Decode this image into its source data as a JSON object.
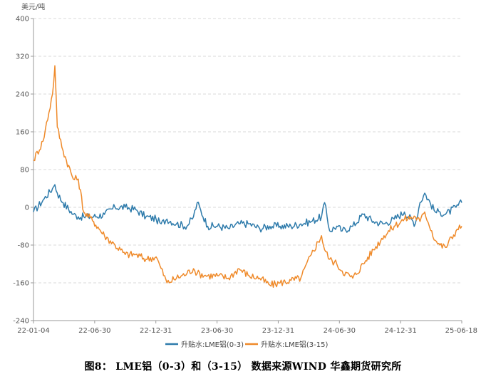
{
  "colors": {
    "series_0_3": "#2e7bab",
    "series_3_15": "#ef8a2a",
    "grid": "#d9d9d9",
    "axis": "#999999"
  },
  "caption": {
    "text": "图8： LME铝（0-3）和（3-15）   数据来源WIND  华鑫期货研究所"
  },
  "chart_data": {
    "type": "line",
    "ylabel": "美元/吨",
    "ylim": [
      -240,
      400
    ],
    "yticks": [
      -240,
      -160,
      -80,
      0,
      80,
      160,
      240,
      320,
      400
    ],
    "y_tick_labels": [
      "-240",
      "-160",
      "-80",
      "0",
      "80",
      "160",
      "240",
      "320",
      "400"
    ],
    "x_tick_labels": [
      "22-01-04",
      "22-06-30",
      "22-12-31",
      "23-06-30",
      "23-12-31",
      "24-06-30",
      "24-12-31",
      "25-06-18"
    ],
    "grid": "horizontal dashed",
    "legend_position": "bottom-center",
    "x_dates": [
      "2022-01-04",
      "2022-02-01",
      "2022-03-01",
      "2022-03-08",
      "2022-03-15",
      "2022-04-01",
      "2022-05-01",
      "2022-05-16",
      "2022-06-01",
      "2022-06-30",
      "2022-08-01",
      "2022-09-01",
      "2022-10-01",
      "2022-11-01",
      "2022-12-01",
      "2022-12-31",
      "2023-01-15",
      "2023-02-01",
      "2023-03-01",
      "2023-04-01",
      "2023-04-20",
      "2023-05-01",
      "2023-06-01",
      "2023-06-30",
      "2023-08-01",
      "2023-09-01",
      "2023-10-01",
      "2023-11-01",
      "2023-12-01",
      "2023-12-31",
      "2024-02-01",
      "2024-03-01",
      "2024-04-01",
      "2024-05-01",
      "2024-05-10",
      "2024-05-25",
      "2024-06-15",
      "2024-07-01",
      "2024-08-01",
      "2024-09-01",
      "2024-10-01",
      "2024-11-01",
      "2024-12-01",
      "2024-12-31",
      "2025-02-01",
      "2025-02-15",
      "2025-03-01",
      "2025-04-01",
      "2025-04-15",
      "2025-05-01",
      "2025-06-01",
      "2025-06-18"
    ],
    "series": [
      {
        "name": "升贴水:LME铝(0-3)",
        "values": [
          -10,
          15,
          40,
          48,
          30,
          10,
          -15,
          -20,
          -20,
          -20,
          -15,
          0,
          0,
          -5,
          -20,
          -25,
          -35,
          -25,
          -35,
          -40,
          -20,
          10,
          -40,
          -40,
          -45,
          -35,
          -35,
          -45,
          -40,
          -40,
          -40,
          -35,
          -30,
          -20,
          10,
          -50,
          -40,
          -50,
          -40,
          -15,
          -30,
          -35,
          -25,
          -10,
          -35,
          10,
          30,
          -10,
          -10,
          -15,
          0,
          10
        ]
      },
      {
        "name": "升贴水:LME铝(3-15)",
        "values": [
          100,
          140,
          240,
          300,
          170,
          120,
          60,
          60,
          -10,
          -30,
          -60,
          -80,
          -100,
          -100,
          -110,
          -105,
          -130,
          -160,
          -150,
          -140,
          -130,
          -140,
          -145,
          -145,
          -150,
          -130,
          -145,
          -150,
          -165,
          -160,
          -155,
          -150,
          -100,
          -60,
          -90,
          -110,
          -120,
          -135,
          -150,
          -120,
          -90,
          -60,
          -40,
          -25,
          -20,
          -30,
          -10,
          -70,
          -80,
          -85,
          -50,
          -40
        ]
      }
    ],
    "legend": [
      "升贴水:LME铝(0-3)",
      "升贴水:LME铝(3-15)"
    ]
  }
}
